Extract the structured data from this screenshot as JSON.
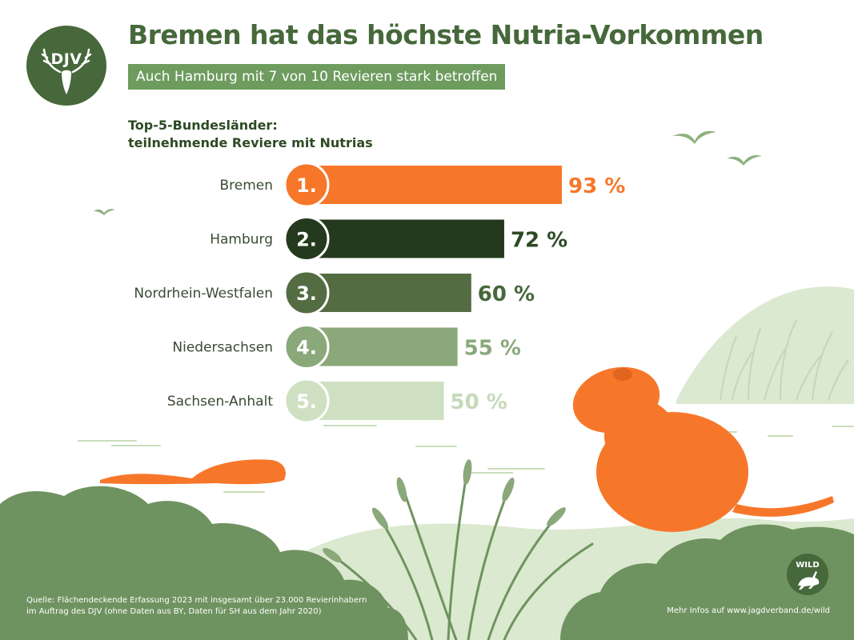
{
  "header": {
    "title": "Bremen hat das höchste Nutria-Vorkommen",
    "subtitle": "Auch Hamburg mit 7 von 10 Revieren stark betroffen"
  },
  "logo": {
    "text": "DJV",
    "icon": "deer-antlers-icon"
  },
  "chart_data": {
    "type": "bar",
    "orientation": "horizontal",
    "title_lines": [
      "Top-5-Bundesländer:",
      "teilnehmende Reviere mit Nutrias"
    ],
    "categories": [
      "Bremen",
      "Hamburg",
      "Nordrhein-Westfalen",
      "Niedersachsen",
      "Sachsen-Anhalt"
    ],
    "ranks": [
      "1.",
      "2.",
      "3.",
      "4.",
      "5."
    ],
    "values": [
      93,
      72,
      60,
      55,
      50
    ],
    "value_labels": [
      "93 %",
      "72 %",
      "60 %",
      "55 %",
      "50 %"
    ],
    "unit": "%",
    "colors": [
      "#f7772a",
      "#24391d",
      "#546c42",
      "#8aa87a",
      "#cfe0c2"
    ],
    "xlim": [
      0,
      100
    ],
    "grid": false,
    "legend": "none"
  },
  "footer": {
    "source_lines": [
      "Quelle: Flächendeckende Erfassung 2023 mit insgesamt über 23.000 Revierinhabern",
      "im Auftrag des DJV (ohne Daten aus BY, Daten für SH aus dem Jahr 2020)"
    ],
    "more_info": "Mehr Infos auf www.jagdverband.de/wild",
    "badge_text": "WILD",
    "badge_icon": "hare-icon"
  },
  "colors": {
    "brand_green": "#46683a",
    "accent_orange": "#f7772a",
    "light_green": "#d6e6cb"
  }
}
